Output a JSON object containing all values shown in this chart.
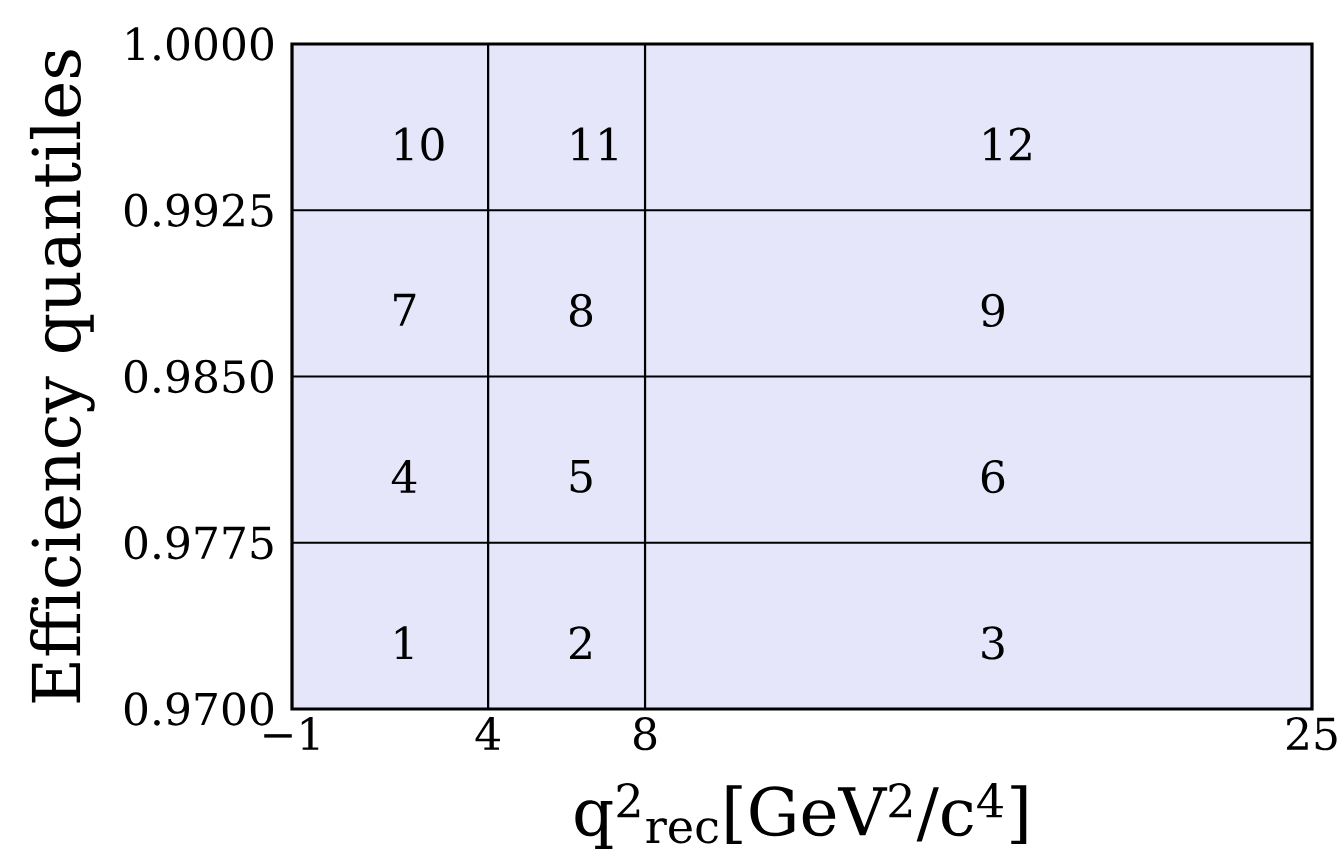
{
  "chart_data": {
    "type": "histogram",
    "xlabel": "q$^{2}$$_{rec}$[GeV$^{2}$/c$^{4}$]",
    "ylabel": "Efficiency quantiles",
    "bins": [
      -1,
      4,
      8,
      25
    ],
    "values": [
      1.0,
      1.0,
      1.0
    ],
    "color": "#e6e6fa",
    "xlim": [
      -1,
      25
    ],
    "ylim": [
      0.97,
      1.0
    ],
    "xticks": [
      {
        "value": -1,
        "label": "−1"
      },
      4,
      8,
      25
    ],
    "yticks": [
      {
        "value": 0.97,
        "label": "0.9700"
      },
      0.9775,
      {
        "value": 0.985,
        "label": "0.9850"
      },
      0.9925,
      {
        "value": 1.0,
        "label": "1.0000"
      }
    ],
    "grid": "y",
    "annotations": [
      "1",
      "2",
      "3",
      "4",
      "5",
      "6",
      "7",
      "8",
      "9",
      "10",
      "11",
      "12"
    ]
  }
}
